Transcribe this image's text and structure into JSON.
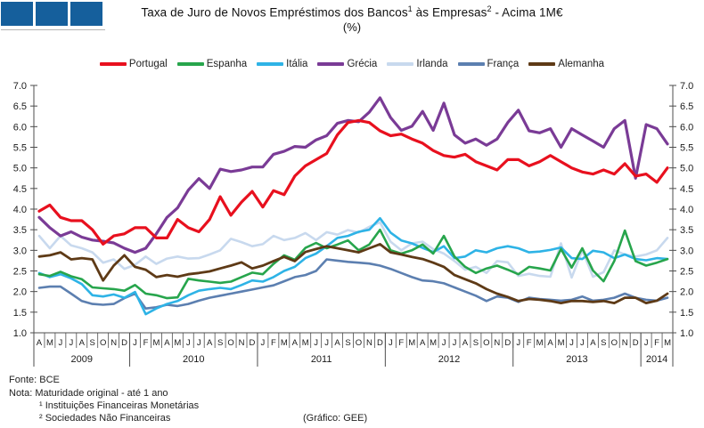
{
  "header": {
    "title_prefix": "Taxa de Juro de Novos Empréstimos dos Bancos",
    "title_sup1": "1",
    "title_mid": " às Empresas",
    "title_sup2": "2",
    "title_suffix": " - Acima 1M€",
    "subtitle": "(%)"
  },
  "footer": {
    "source": "Fonte: BCE",
    "note": "Nota: Maturidade original - até 1 ano",
    "footnote1": "¹ Instituições Financeiras Monetárias",
    "footnote2": "² Sociedades Não Financeiras",
    "credit": "(Gráfico: GEE)"
  },
  "logo_color": "#155f9c",
  "chart_data": {
    "type": "line",
    "title": "Taxa de Juro de Novos Empréstimos dos Bancos às Empresas - Acima 1M€ (%)",
    "xlabel": "",
    "ylabel": "%",
    "ylim": [
      1.0,
      7.0
    ],
    "y_tick_step": 0.5,
    "grid": false,
    "legend_position": "top",
    "axis_color": "#4d4d4d",
    "x_months": [
      "A",
      "M",
      "J",
      "J",
      "A",
      "S",
      "O",
      "N",
      "D",
      "J",
      "F",
      "M",
      "A",
      "M",
      "J",
      "J",
      "A",
      "S",
      "O",
      "N",
      "D",
      "J",
      "F",
      "M",
      "A",
      "M",
      "J",
      "J",
      "A",
      "S",
      "O",
      "N",
      "D",
      "J",
      "F",
      "M",
      "A",
      "M",
      "J",
      "J",
      "A",
      "S",
      "O",
      "N",
      "D",
      "J",
      "F",
      "M",
      "A",
      "M",
      "J",
      "J",
      "A",
      "S",
      "O",
      "N",
      "D",
      "J",
      "F",
      "M"
    ],
    "x_years": [
      {
        "label": "2009",
        "start": 0,
        "count": 9
      },
      {
        "label": "2010",
        "start": 9,
        "count": 12
      },
      {
        "label": "2011",
        "start": 21,
        "count": 12
      },
      {
        "label": "2012",
        "start": 33,
        "count": 12
      },
      {
        "label": "2013",
        "start": 45,
        "count": 12
      },
      {
        "label": "2014",
        "start": 57,
        "count": 3
      }
    ],
    "series": [
      {
        "name": "Portugal",
        "color": "#e8101e",
        "width": 3.2,
        "values": [
          3.95,
          4.1,
          3.8,
          3.72,
          3.72,
          3.5,
          3.15,
          3.35,
          3.4,
          3.55,
          3.55,
          3.3,
          3.3,
          3.75,
          3.55,
          3.45,
          3.75,
          4.3,
          3.85,
          4.17,
          4.43,
          4.05,
          4.45,
          4.35,
          4.8,
          5.05,
          5.2,
          5.35,
          5.8,
          6.1,
          6.15,
          6.1,
          5.9,
          5.78,
          5.82,
          5.7,
          5.6,
          5.42,
          5.3,
          5.26,
          5.33,
          5.15,
          5.05,
          4.95,
          5.2,
          5.2,
          5.05,
          5.15,
          5.3,
          5.15,
          5.0,
          4.9,
          4.85,
          4.95,
          4.85,
          5.1,
          4.8,
          4.85,
          4.65,
          5.0
        ]
      },
      {
        "name": "Espanha",
        "color": "#27a54c",
        "width": 2.6,
        "values": [
          2.42,
          2.38,
          2.48,
          2.37,
          2.3,
          2.1,
          2.08,
          2.06,
          2.02,
          2.16,
          1.95,
          1.91,
          1.84,
          1.86,
          2.31,
          2.27,
          2.24,
          2.21,
          2.24,
          2.35,
          2.46,
          2.42,
          2.67,
          2.88,
          2.77,
          3.06,
          3.18,
          3.05,
          3.14,
          3.24,
          3.0,
          3.14,
          3.5,
          3.0,
          2.92,
          3.0,
          3.14,
          2.92,
          3.35,
          2.85,
          2.6,
          2.45,
          2.56,
          2.63,
          2.53,
          2.42,
          2.6,
          2.56,
          2.51,
          3.03,
          2.58,
          3.05,
          2.51,
          2.25,
          2.74,
          3.48,
          2.74,
          2.63,
          2.7,
          2.79
        ]
      },
      {
        "name": "Itália",
        "color": "#2eb3e6",
        "width": 2.6,
        "values": [
          2.45,
          2.35,
          2.42,
          2.32,
          2.18,
          1.91,
          1.88,
          1.93,
          1.85,
          1.99,
          1.45,
          1.59,
          1.7,
          1.77,
          1.91,
          2.02,
          2.06,
          2.09,
          2.06,
          2.16,
          2.27,
          2.24,
          2.35,
          2.5,
          2.6,
          2.81,
          2.92,
          3.1,
          3.3,
          3.35,
          3.45,
          3.5,
          3.78,
          3.43,
          3.24,
          3.17,
          3.06,
          2.96,
          3.1,
          2.81,
          2.85,
          3.0,
          2.95,
          3.05,
          3.1,
          3.05,
          2.95,
          2.97,
          3.01,
          3.07,
          2.81,
          2.79,
          2.99,
          2.95,
          2.81,
          2.9,
          2.79,
          2.76,
          2.81,
          2.79
        ]
      },
      {
        "name": "Grécia",
        "color": "#7a3b96",
        "width": 3.2,
        "values": [
          3.8,
          3.55,
          3.35,
          3.45,
          3.32,
          3.25,
          3.22,
          3.18,
          3.05,
          2.95,
          3.05,
          3.4,
          3.8,
          4.03,
          4.46,
          4.74,
          4.5,
          4.97,
          4.91,
          4.95,
          5.02,
          5.02,
          5.33,
          5.4,
          5.52,
          5.5,
          5.68,
          5.78,
          6.08,
          6.15,
          6.12,
          6.35,
          6.7,
          6.22,
          5.91,
          6.01,
          6.37,
          5.91,
          6.57,
          5.8,
          5.6,
          5.7,
          5.55,
          5.7,
          6.1,
          6.4,
          5.9,
          5.85,
          5.95,
          5.5,
          5.95,
          5.8,
          5.65,
          5.5,
          5.95,
          6.15,
          4.75,
          6.05,
          5.95,
          5.58
        ]
      },
      {
        "name": "Irlanda",
        "color": "#c8d9ee",
        "width": 2.6,
        "values": [
          3.35,
          3.05,
          3.35,
          3.12,
          3.05,
          2.95,
          2.7,
          2.78,
          2.55,
          2.65,
          2.85,
          2.67,
          2.8,
          2.85,
          2.8,
          2.81,
          2.9,
          3.0,
          3.28,
          3.2,
          3.1,
          3.15,
          3.35,
          3.25,
          3.3,
          3.42,
          3.25,
          3.44,
          3.38,
          3.49,
          3.43,
          3.57,
          3.68,
          3.21,
          3.0,
          3.17,
          3.21,
          3.03,
          2.92,
          2.74,
          2.53,
          2.6,
          2.45,
          2.74,
          2.71,
          2.38,
          2.43,
          2.38,
          2.36,
          3.17,
          2.34,
          3.0,
          2.36,
          2.47,
          3.0,
          2.9,
          2.85,
          2.9,
          3.0,
          3.3
        ]
      },
      {
        "name": "França",
        "color": "#5c7fb0",
        "width": 2.6,
        "values": [
          2.09,
          2.12,
          2.12,
          1.95,
          1.77,
          1.7,
          1.68,
          1.7,
          1.84,
          1.95,
          1.59,
          1.62,
          1.68,
          1.65,
          1.7,
          1.78,
          1.85,
          1.9,
          1.95,
          2.0,
          2.05,
          2.1,
          2.15,
          2.25,
          2.35,
          2.4,
          2.5,
          2.78,
          2.75,
          2.72,
          2.7,
          2.68,
          2.63,
          2.55,
          2.45,
          2.35,
          2.27,
          2.25,
          2.2,
          2.1,
          2.0,
          1.9,
          1.77,
          1.88,
          1.85,
          1.75,
          1.85,
          1.82,
          1.8,
          1.78,
          1.8,
          1.88,
          1.78,
          1.8,
          1.85,
          1.95,
          1.85,
          1.8,
          1.78,
          1.85
        ]
      },
      {
        "name": "Alemanha",
        "color": "#5e3a16",
        "width": 2.8,
        "values": [
          2.85,
          2.88,
          2.95,
          2.78,
          2.81,
          2.78,
          2.27,
          2.63,
          2.88,
          2.6,
          2.53,
          2.35,
          2.4,
          2.36,
          2.42,
          2.45,
          2.49,
          2.56,
          2.63,
          2.71,
          2.56,
          2.63,
          2.74,
          2.84,
          2.74,
          2.96,
          3.03,
          3.1,
          3.05,
          3.0,
          2.95,
          3.05,
          3.15,
          2.95,
          2.9,
          2.84,
          2.79,
          2.7,
          2.6,
          2.4,
          2.3,
          2.2,
          2.06,
          1.95,
          1.87,
          1.77,
          1.82,
          1.8,
          1.77,
          1.72,
          1.77,
          1.77,
          1.75,
          1.77,
          1.72,
          1.85,
          1.85,
          1.72,
          1.78,
          1.95
        ]
      }
    ]
  }
}
